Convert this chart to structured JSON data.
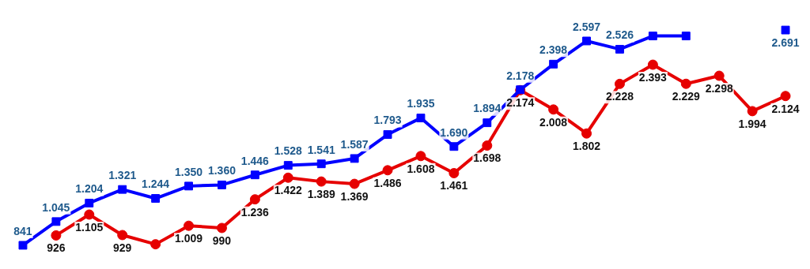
{
  "chart_data": {
    "type": "line",
    "categories": [
      null,
      null,
      null,
      null,
      null,
      null,
      null,
      null,
      null,
      null,
      null,
      null,
      null,
      null,
      null,
      null,
      null,
      null,
      null,
      null,
      null,
      null,
      null,
      null
    ],
    "series": [
      {
        "color": "#0000ff",
        "marker": "square",
        "values": [
          841,
          1045,
          1204,
          1321,
          1244,
          1350,
          1360,
          1446,
          1528,
          1541,
          1587,
          1793,
          1935,
          1690,
          1894,
          2178,
          2398,
          2597,
          2526,
          2640,
          2640,
          null,
          null,
          2691
        ],
        "value_labels": [
          "841",
          "1.045",
          "1.204",
          "1.321",
          "1.244",
          "1.350",
          "1.360",
          "1.446",
          "1.528",
          "1.541",
          "1.587",
          "1.793",
          "1.935",
          "1.690",
          "1.894",
          "2.178",
          "2.398",
          "2.597",
          "2.526",
          null,
          null,
          null,
          null,
          "2.691"
        ]
      },
      {
        "color": "#e60000",
        "marker": "circle",
        "values": [
          null,
          926,
          1105,
          929,
          850,
          1009,
          990,
          1236,
          1422,
          1389,
          1369,
          1486,
          1608,
          1461,
          1698,
          2174,
          2008,
          1802,
          2228,
          2393,
          2229,
          2298,
          1994,
          2124
        ],
        "value_labels": [
          null,
          "926",
          "1.105",
          "929",
          null,
          "1.009",
          "990",
          "1.236",
          "1.422",
          "1.389",
          "1.369",
          "1.486",
          "1.608",
          "1.461",
          "1.698",
          "2.174",
          "2.008",
          "1.802",
          "2.228",
          "2.393",
          "2.229",
          "2.298",
          "1.994",
          "2.124"
        ]
      }
    ],
    "tick_labels": false,
    "legend": false,
    "line_style": "solid"
  }
}
